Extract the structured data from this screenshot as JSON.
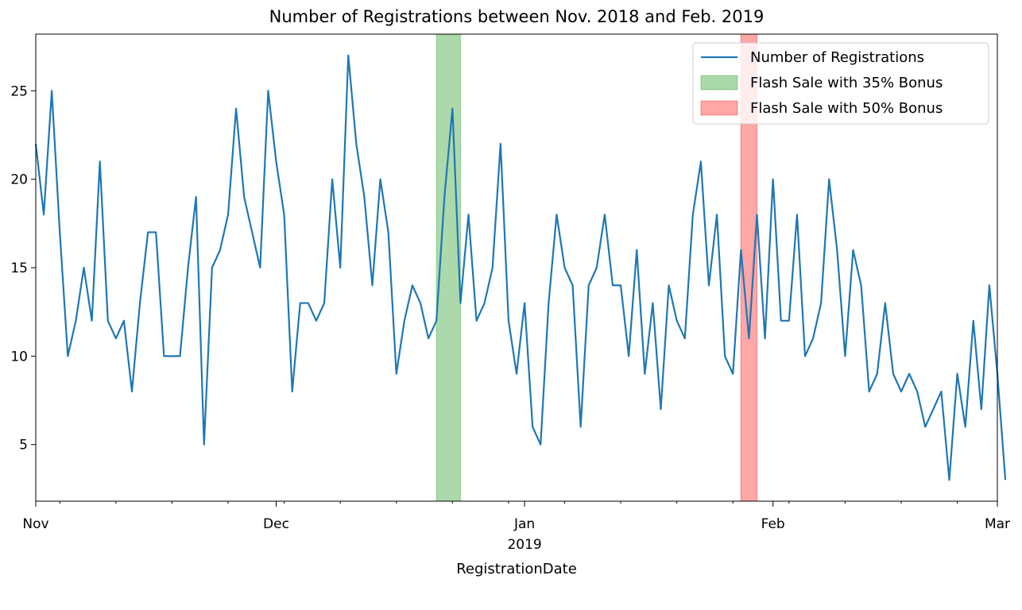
{
  "chart_data": {
    "type": "line",
    "title": "Number of Registrations between Nov. 2018 and Feb. 2019",
    "xlabel": "RegistrationDate",
    "ylabel": "",
    "xlim": [
      "2018-11-01",
      "2019-03-01"
    ],
    "ylim": [
      1.8,
      28.2
    ],
    "x_tick_labels": [
      {
        "date": "2018-11-01",
        "label": "Nov"
      },
      {
        "date": "2018-12-01",
        "label": "Dec"
      },
      {
        "date": "2019-01-01",
        "label": "Jan"
      },
      {
        "date": "2019-02-01",
        "label": "Feb"
      },
      {
        "date": "2019-03-01",
        "label": "Mar"
      }
    ],
    "x_year_label": {
      "date": "2019-01-01",
      "label": "2019"
    },
    "y_ticks": [
      5,
      10,
      15,
      20,
      25
    ],
    "legend_position": "top-right",
    "legend": {
      "line": "Number of Registrations",
      "span1": "Flash Sale with 35% Bonus",
      "span2": "Flash Sale with 50% Bonus"
    },
    "spans": [
      {
        "label": "Flash Sale with 35% Bonus",
        "start": "2018-12-21",
        "end": "2018-12-24",
        "color": "#2ca02c"
      },
      {
        "label": "Flash Sale with 50% Bonus",
        "start": "2019-01-28",
        "end": "2019-01-30",
        "color": "#ff0000"
      }
    ],
    "series": [
      {
        "name": "Number of Registrations",
        "color": "#1f77b4",
        "start_date": "2018-11-01",
        "frequency": "daily",
        "values": [
          22,
          18,
          25,
          17,
          10,
          12,
          15,
          12,
          21,
          12,
          11,
          12,
          8,
          13,
          17,
          17,
          10,
          10,
          10,
          15,
          19,
          5,
          15,
          16,
          18,
          24,
          19,
          17,
          15,
          25,
          21,
          18,
          8,
          13,
          13,
          12,
          13,
          20,
          15,
          27,
          22,
          19,
          14,
          20,
          17,
          9,
          12,
          14,
          13,
          11,
          12,
          19,
          24,
          13,
          18,
          12,
          13,
          15,
          22,
          12,
          9,
          13,
          6,
          5,
          13,
          18,
          15,
          14,
          6,
          14,
          15,
          18,
          14,
          14,
          10,
          16,
          9,
          13,
          7,
          14,
          12,
          11,
          18,
          21,
          14,
          18,
          10,
          9,
          16,
          11,
          18,
          11,
          20,
          12,
          12,
          18,
          10,
          11,
          13,
          20,
          16,
          10,
          16,
          14,
          8,
          9,
          13,
          9,
          8,
          9,
          8,
          6,
          7,
          8,
          3,
          9,
          6,
          12,
          7,
          14,
          9,
          3
        ]
      }
    ]
  }
}
